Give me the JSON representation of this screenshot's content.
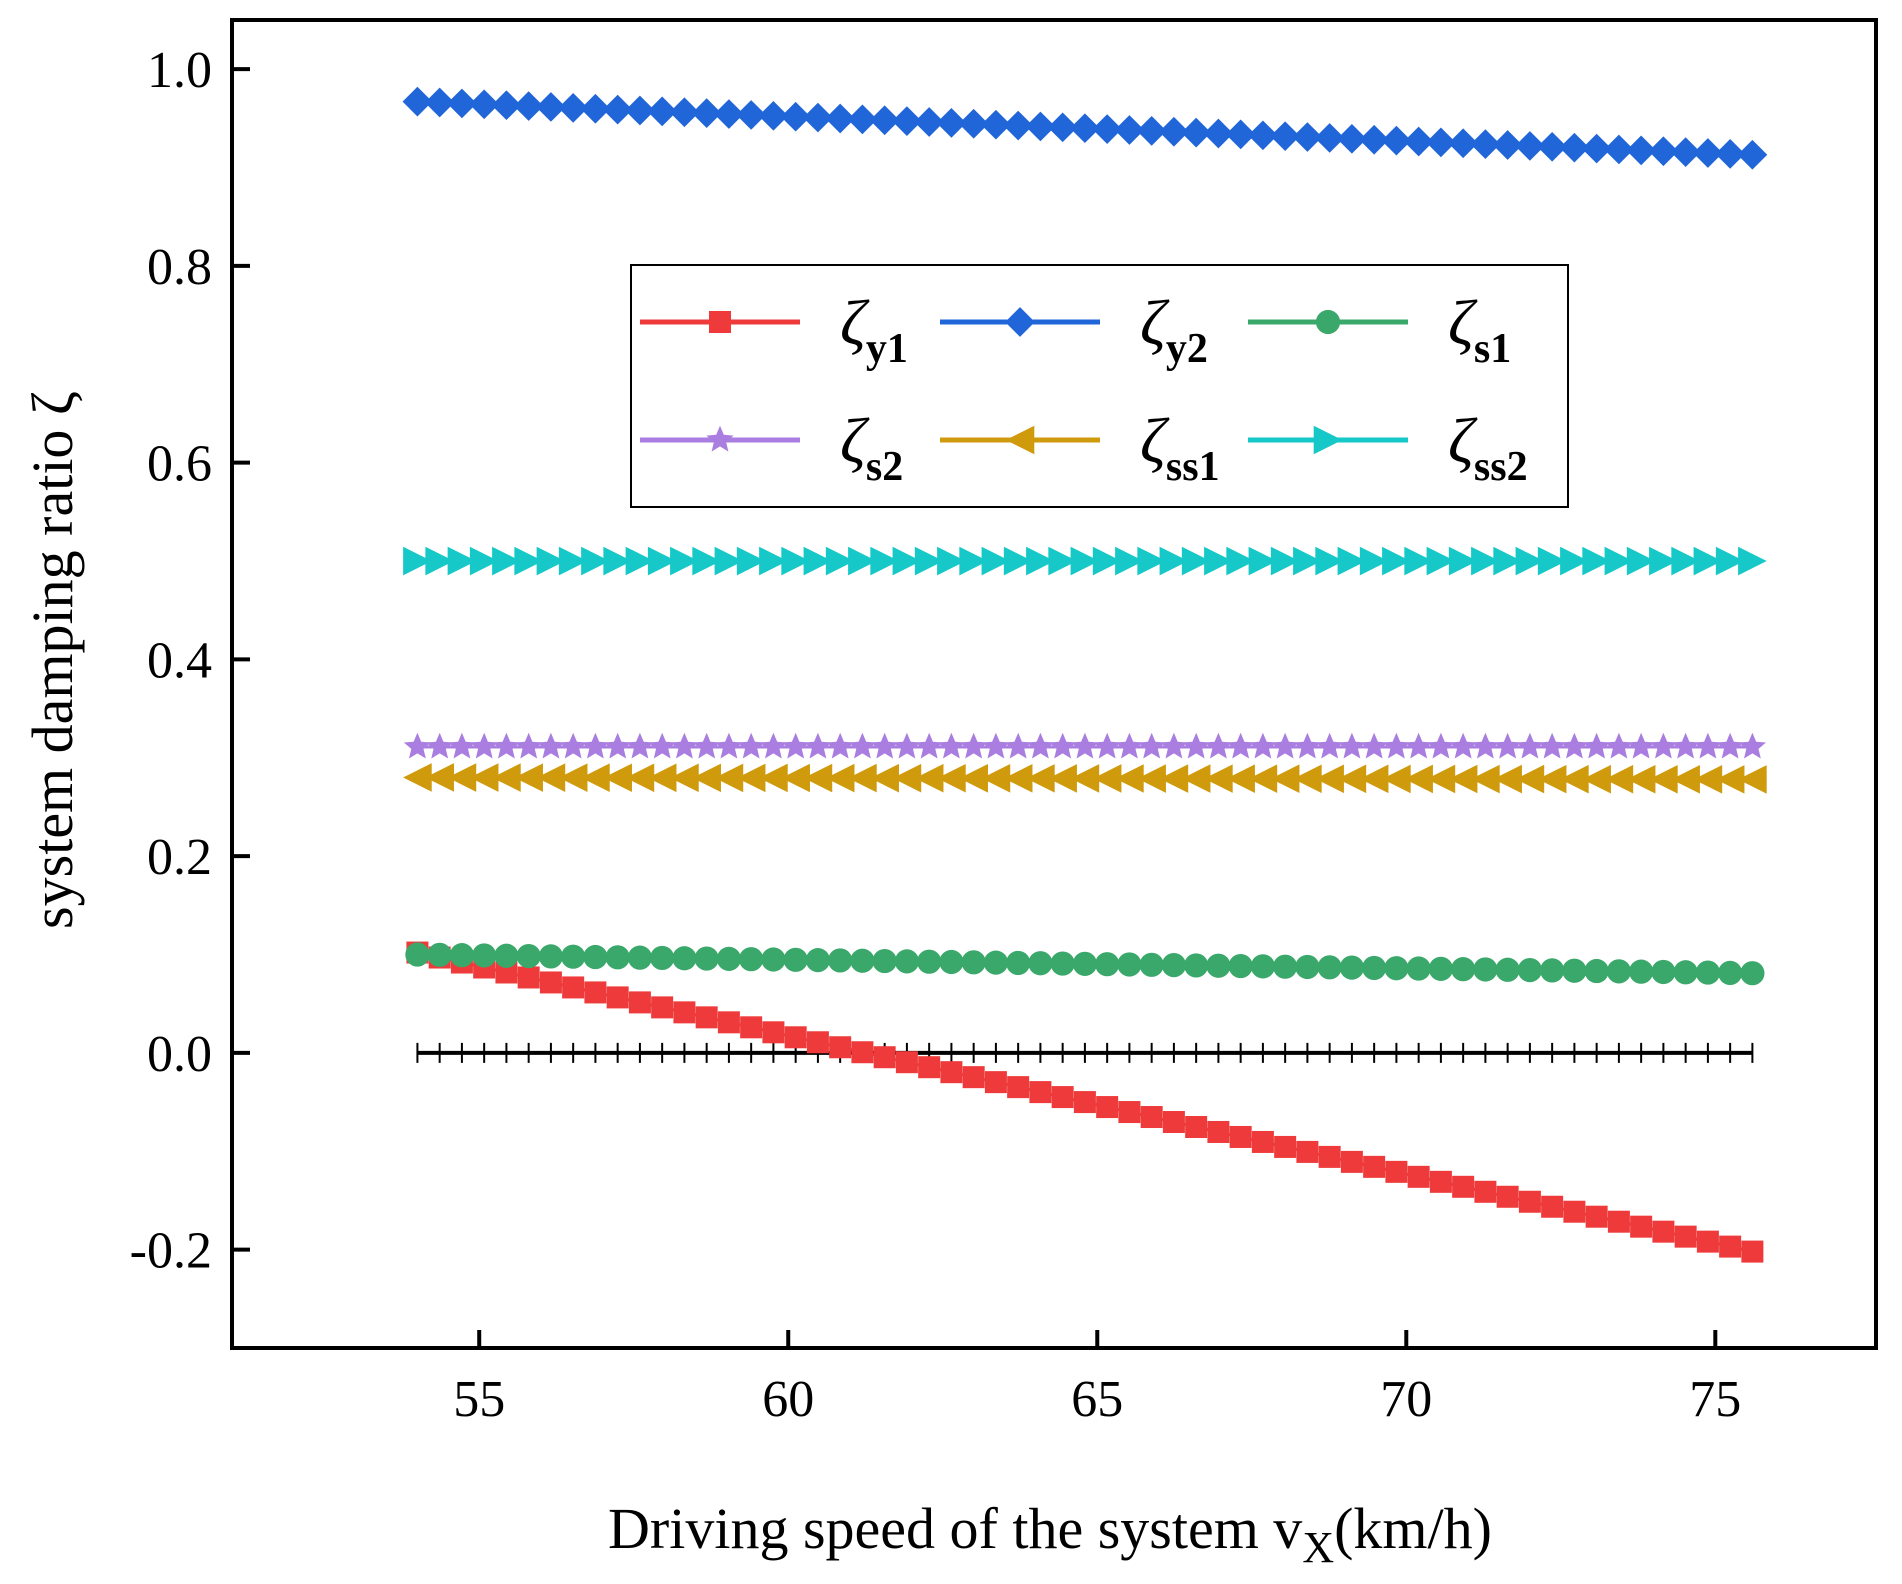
{
  "chart_data": {
    "type": "line",
    "title": "",
    "xlabel": "Driving speed of the system v",
    "xlabel_subscript": "X",
    "xlabel_suffix": "(km/h)",
    "ylabel": "system damping ratio ζ",
    "xlim": [
      51.0,
      77.6
    ],
    "ylim": [
      -0.3,
      1.05
    ],
    "xticks": [
      55,
      60,
      65,
      70,
      75
    ],
    "xtick_labels": [
      "55",
      "60",
      "65",
      "70",
      "75"
    ],
    "yticks": [
      -0.2,
      0.0,
      0.2,
      0.4,
      0.6,
      0.8,
      1.0
    ],
    "ytick_labels": [
      "-0.2",
      "0.0",
      "0.2",
      "0.4",
      "0.6",
      "0.8",
      "1.0"
    ],
    "legend_position": "upper-center",
    "legend_columns": 3,
    "x_range": [
      54.0,
      75.6
    ],
    "n_points": 61,
    "zero_line": {
      "y": 0.0,
      "color": "#000000"
    },
    "series": [
      {
        "name": "ζy1",
        "symbol": "ζ",
        "subscript": "y1",
        "color": "#ee3a3a",
        "marker": "square",
        "start": 0.102,
        "end": -0.202
      },
      {
        "name": "ζy2",
        "symbol": "ζ",
        "subscript": "y2",
        "color": "#2166d9",
        "marker": "diamond",
        "start": 0.967,
        "end": 0.913
      },
      {
        "name": "ζs1",
        "symbol": "ζ",
        "subscript": "s1",
        "color": "#3aa86a",
        "marker": "circle",
        "start": 0.1,
        "end": 0.081
      },
      {
        "name": "ζs2",
        "symbol": "ζ",
        "subscript": "s2",
        "color": "#a97ee0",
        "marker": "star",
        "start": 0.311,
        "end": 0.311
      },
      {
        "name": "ζss1",
        "symbol": "ζ",
        "subscript": "ss1",
        "color": "#cf9a0c",
        "marker": "triangle-left",
        "start": 0.28,
        "end": 0.278
      },
      {
        "name": "ζss2",
        "symbol": "ζ",
        "subscript": "ss2",
        "color": "#17c8c8",
        "marker": "triangle-right",
        "start": 0.5,
        "end": 0.5
      }
    ]
  }
}
